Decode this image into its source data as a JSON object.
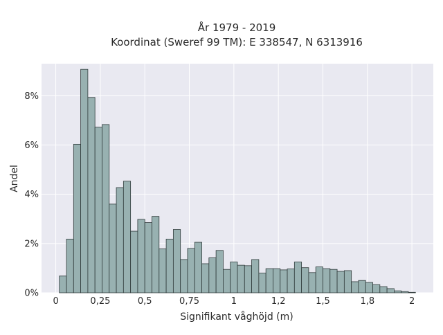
{
  "chart_data": {
    "type": "bar",
    "title_line1": "År 1979 - 2019",
    "title_line2": "Koordinat (Sweref 99 TM): E 338547, N 6313916",
    "xlabel": "Signifikant våghöjd (m)",
    "ylabel": "Andel",
    "xlim": [
      -0.08,
      2.12
    ],
    "ylim": [
      0,
      9.3
    ],
    "bin_width": 0.04,
    "bin_start": 0.02,
    "x_ticks": [
      {
        "value": 0,
        "label": "0"
      },
      {
        "value": 0.25,
        "label": "0,25"
      },
      {
        "value": 0.5,
        "label": "0,5"
      },
      {
        "value": 0.75,
        "label": "0,75"
      },
      {
        "value": 1,
        "label": "1"
      },
      {
        "value": 1.25,
        "label": "1,2"
      },
      {
        "value": 1.5,
        "label": "1,5"
      },
      {
        "value": 1.75,
        "label": "1,8"
      },
      {
        "value": 2,
        "label": "2"
      }
    ],
    "y_ticks": [
      {
        "value": 0,
        "label": "0%"
      },
      {
        "value": 2,
        "label": "2%"
      },
      {
        "value": 4,
        "label": "4%"
      },
      {
        "value": 6,
        "label": "6%"
      },
      {
        "value": 8,
        "label": "8%"
      }
    ],
    "values": [
      0.68,
      2.18,
      6.03,
      9.07,
      7.93,
      6.72,
      6.83,
      3.6,
      4.27,
      4.53,
      2.5,
      2.98,
      2.85,
      3.1,
      1.78,
      2.18,
      2.57,
      1.35,
      1.8,
      2.05,
      1.18,
      1.42,
      1.72,
      0.95,
      1.25,
      1.12,
      1.1,
      1.35,
      0.8,
      0.98,
      0.98,
      0.93,
      0.97,
      1.25,
      1.02,
      0.82,
      1.05,
      0.98,
      0.95,
      0.87,
      0.9,
      0.45,
      0.5,
      0.42,
      0.33,
      0.25,
      0.17,
      0.08,
      0.05,
      0.02
    ],
    "grid": true,
    "colors": {
      "plot_bg": "#e9e9f1",
      "grid": "#ffffff",
      "bar_fill": "#98b1b1",
      "bar_stroke": "#2f3a3a"
    }
  }
}
